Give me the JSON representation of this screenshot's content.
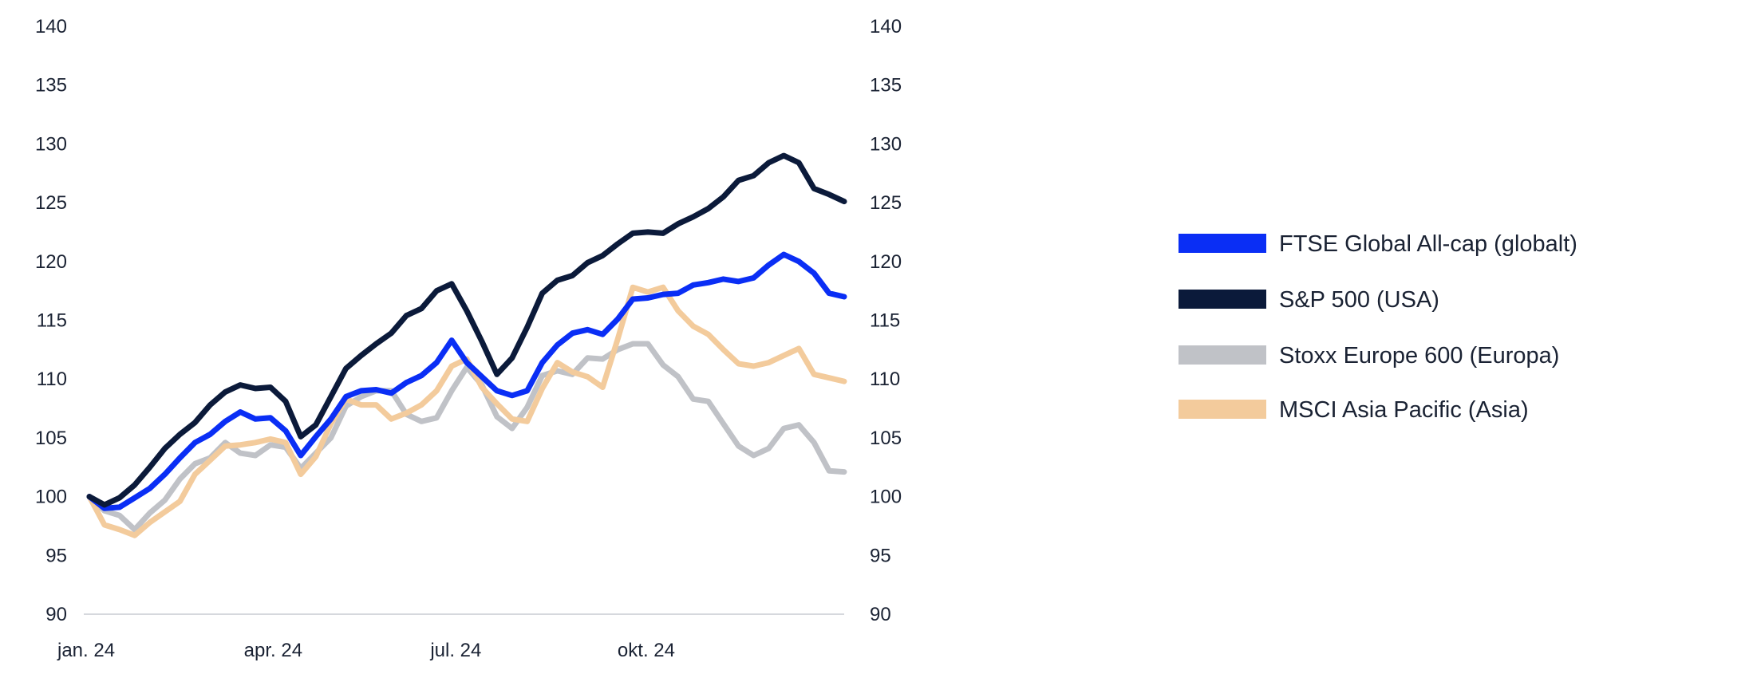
{
  "chart_data": {
    "type": "line",
    "title": "",
    "xlabel": "",
    "ylabel": "",
    "ylim": [
      90,
      140
    ],
    "y_ticks": [
      "140",
      "135",
      "130",
      "125",
      "120",
      "115",
      "110",
      "105",
      "100",
      "95",
      "90"
    ],
    "y_ticks_right": [
      "140",
      "135",
      "130",
      "125",
      "120",
      "115",
      "110",
      "105",
      "100",
      "95",
      "90"
    ],
    "x_ticks": [
      {
        "label": "jan. 24",
        "at": 0
      },
      {
        "label": "apr. 24",
        "at": 0.247
      },
      {
        "label": "jul. 24",
        "at": 0.494
      },
      {
        "label": "okt. 24",
        "at": 0.742
      }
    ],
    "grid": false,
    "legend_position": "right",
    "x": [
      0,
      0.02,
      0.04,
      0.06,
      0.08,
      0.1,
      0.12,
      0.14,
      0.16,
      0.18,
      0.2,
      0.22,
      0.24,
      0.26,
      0.28,
      0.3,
      0.32,
      0.34,
      0.36,
      0.38,
      0.4,
      0.42,
      0.44,
      0.46,
      0.48,
      0.5,
      0.52,
      0.54,
      0.56,
      0.58,
      0.6,
      0.62,
      0.64,
      0.66,
      0.68,
      0.7,
      0.72,
      0.74,
      0.76,
      0.78,
      0.8,
      0.82,
      0.84,
      0.86,
      0.88,
      0.9,
      0.92,
      0.94,
      0.96,
      0.98,
      1.0
    ],
    "series": [
      {
        "name": "Stoxx Europe 600 (Europa)",
        "color": "#c0c2c7",
        "values": [
          100.0,
          98.8,
          98.4,
          97.2,
          98.6,
          99.7,
          101.5,
          102.8,
          103.3,
          104.6,
          103.7,
          103.5,
          104.4,
          104.2,
          102.4,
          103.7,
          105.0,
          107.7,
          108.5,
          109.0,
          109.0,
          107.0,
          106.4,
          106.7,
          109.0,
          111.0,
          109.5,
          106.8,
          105.8,
          107.6,
          110.3,
          110.7,
          110.4,
          111.8,
          111.7,
          112.5,
          113.0,
          113.0,
          111.2,
          110.2,
          108.3,
          108.1,
          106.2,
          104.3,
          103.5,
          104.1,
          105.8,
          106.1,
          104.6,
          102.2,
          102.1
        ]
      },
      {
        "name": "MSCI Asia Pacific (Asia)",
        "color": "#f3cb9c",
        "values": [
          100.0,
          97.6,
          97.2,
          96.7,
          97.8,
          98.7,
          99.6,
          101.9,
          103.1,
          104.3,
          104.4,
          104.6,
          104.9,
          104.6,
          101.9,
          103.4,
          106.2,
          108.3,
          107.8,
          107.8,
          106.6,
          107.1,
          107.8,
          109.0,
          111.1,
          111.7,
          109.3,
          107.9,
          106.6,
          106.4,
          109.2,
          111.4,
          110.6,
          110.2,
          109.3,
          113.4,
          117.8,
          117.4,
          117.8,
          115.8,
          114.5,
          113.8,
          112.5,
          111.3,
          111.1,
          111.4,
          112.0,
          112.6,
          110.4,
          110.1,
          109.8
        ]
      },
      {
        "name": "FTSE Global All-cap (globalt)",
        "color": "#0a2ef5",
        "values": [
          100.0,
          99.0,
          99.1,
          99.9,
          100.7,
          101.9,
          103.3,
          104.6,
          105.3,
          106.4,
          107.2,
          106.6,
          106.7,
          105.6,
          103.5,
          105.1,
          106.6,
          108.5,
          109.0,
          109.1,
          108.8,
          109.7,
          110.3,
          111.4,
          113.3,
          111.4,
          110.2,
          109.0,
          108.6,
          109.0,
          111.4,
          112.9,
          113.9,
          114.2,
          113.8,
          115.1,
          116.8,
          116.9,
          117.2,
          117.3,
          118.0,
          118.2,
          118.5,
          118.3,
          118.6,
          119.7,
          120.6,
          120.0,
          119.0,
          117.3,
          117.0
        ]
      },
      {
        "name": "S&P 500 (USA)",
        "color": "#0b1a3a",
        "values": [
          100.0,
          99.3,
          99.9,
          101.0,
          102.5,
          104.1,
          105.3,
          106.3,
          107.8,
          108.9,
          109.5,
          109.2,
          109.3,
          108.1,
          105.1,
          106.1,
          108.5,
          110.9,
          112.0,
          113.0,
          113.9,
          115.4,
          116.0,
          117.5,
          118.1,
          115.8,
          113.2,
          110.4,
          111.8,
          114.4,
          117.3,
          118.4,
          118.8,
          119.9,
          120.5,
          121.5,
          122.4,
          122.5,
          122.4,
          123.2,
          123.8,
          124.5,
          125.5,
          126.9,
          127.3,
          128.4,
          129.0,
          128.4,
          126.2,
          125.7,
          125.1
        ]
      }
    ]
  },
  "legend": {
    "items": [
      {
        "label": "FTSE Global All-cap (globalt)",
        "color": "#0a2ef5"
      },
      {
        "label": "S&P 500 (USA)",
        "color": "#0b1a3a"
      },
      {
        "label": "Stoxx Europe 600 (Europa)",
        "color": "#c0c2c7"
      },
      {
        "label": "MSCI Asia Pacific (Asia)",
        "color": "#f3cb9c"
      }
    ]
  }
}
